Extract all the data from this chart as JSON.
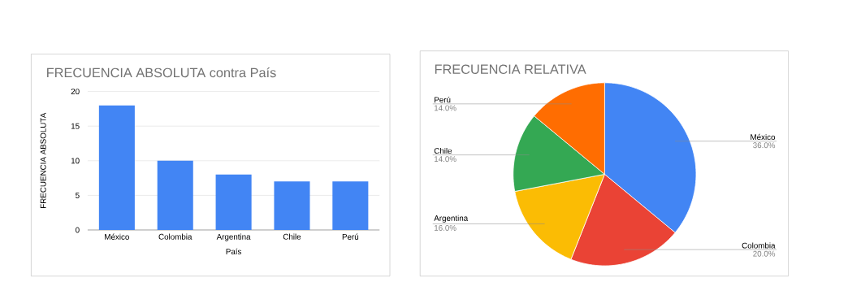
{
  "chart_data": [
    {
      "type": "bar",
      "title": "FRECUENCIA ABSOLUTA contra País",
      "xlabel": "País",
      "ylabel": "FRECUENCIA ABSOLUTA",
      "categories": [
        "México",
        "Colombia",
        "Argentina",
        "Chile",
        "Perú"
      ],
      "values": [
        18,
        10,
        8,
        7,
        7
      ],
      "color": "#4285f4",
      "ylim": [
        0,
        20
      ],
      "yticks": [
        0,
        5,
        10,
        15,
        20
      ],
      "grid": "y"
    },
    {
      "type": "pie",
      "title": "FRECUENCIA RELATIVA",
      "categories": [
        "México",
        "Colombia",
        "Argentina",
        "Chile",
        "Perú"
      ],
      "values": [
        36,
        20,
        16,
        14,
        14
      ],
      "colors": [
        "#4285f4",
        "#ea4335",
        "#fbbc04",
        "#34a853",
        "#ff6d01"
      ],
      "value_labels": [
        "36.0%",
        "20.0%",
        "16.0%",
        "14.0%",
        "14.0%"
      ]
    }
  ]
}
